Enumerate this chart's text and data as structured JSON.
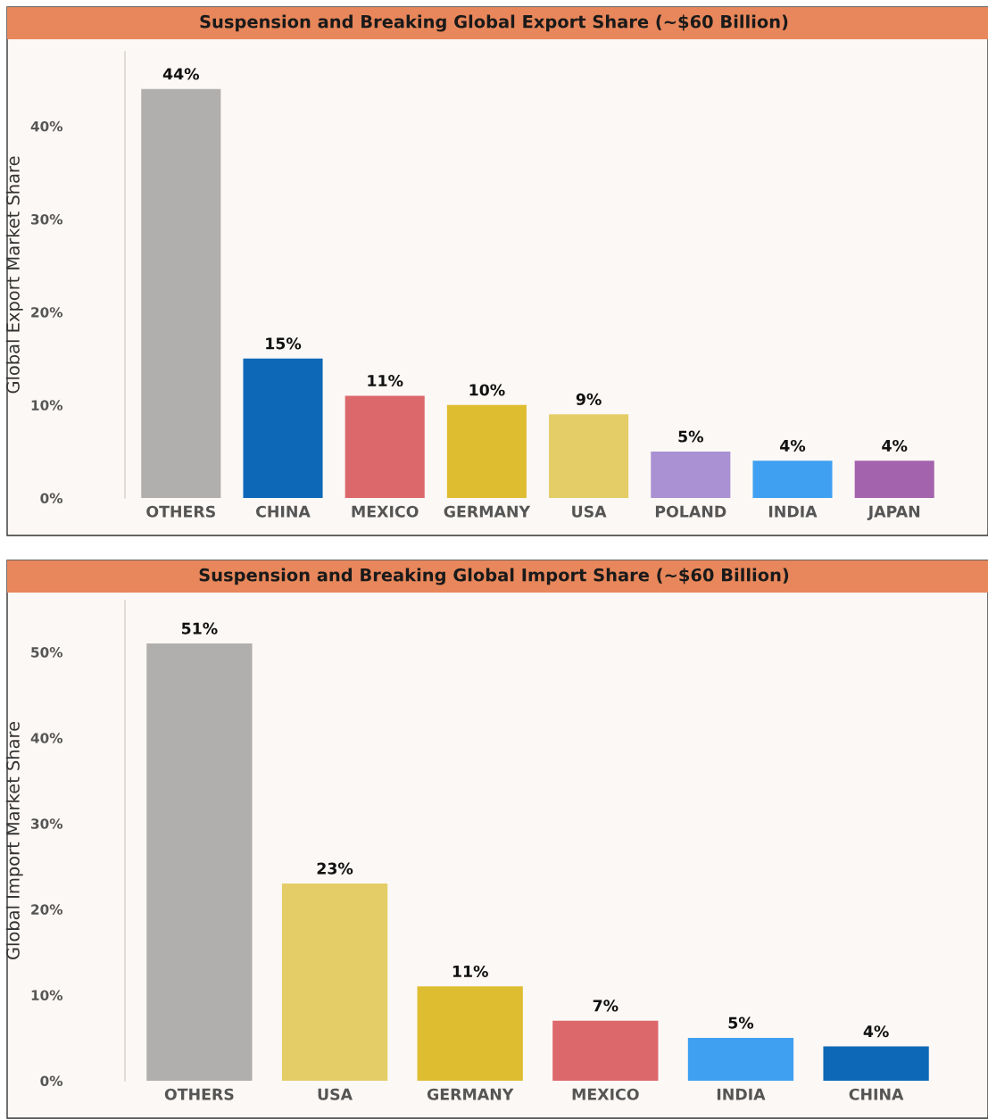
{
  "chart_data": [
    {
      "type": "bar",
      "title": "Suspension and Breaking Global Export Share (~$60 Billion)",
      "ylabel": "Global Export Market Share",
      "categories": [
        "OTHERS",
        "CHINA",
        "MEXICO",
        "GERMANY",
        "USA",
        "POLAND",
        "INDIA",
        "JAPAN"
      ],
      "values": [
        44,
        15,
        11,
        10,
        9,
        5,
        4,
        4
      ],
      "value_labels": [
        "44%",
        "15%",
        "11%",
        "10%",
        "9%",
        "5%",
        "4%",
        "4%"
      ],
      "colors": [
        "#b0afad",
        "#0e68b8",
        "#dc686c",
        "#dfbd31",
        "#e4cd66",
        "#aa91d3",
        "#3fa0f2",
        "#a463ad"
      ],
      "ylim": [
        0,
        48
      ],
      "yticks": [
        {
          "value": 0,
          "label": "0%"
        },
        {
          "value": 10,
          "label": "10%"
        },
        {
          "value": 20,
          "label": "20%"
        },
        {
          "value": 30,
          "label": "30%"
        },
        {
          "value": 40,
          "label": "40%"
        }
      ],
      "grid": false,
      "legend": false
    },
    {
      "type": "bar",
      "title": "Suspension and Breaking Global Import Share (~$60 Billion)",
      "ylabel": "Global Import Market Share",
      "categories": [
        "OTHERS",
        "USA",
        "GERMANY",
        "MEXICO",
        "INDIA",
        "CHINA"
      ],
      "values": [
        51,
        23,
        11,
        7,
        5,
        4
      ],
      "value_labels": [
        "51%",
        "23%",
        "11%",
        "7%",
        "5%",
        "4%"
      ],
      "colors": [
        "#b0afad",
        "#e4cd66",
        "#dfbd31",
        "#dc686c",
        "#3fa0f2",
        "#0e68b8"
      ],
      "ylim": [
        0,
        56
      ],
      "yticks": [
        {
          "value": 0,
          "label": "0%"
        },
        {
          "value": 10,
          "label": "10%"
        },
        {
          "value": 20,
          "label": "20%"
        },
        {
          "value": 30,
          "label": "30%"
        },
        {
          "value": 40,
          "label": "40%"
        },
        {
          "value": 50,
          "label": "50%"
        }
      ],
      "grid": false,
      "legend": false
    }
  ]
}
